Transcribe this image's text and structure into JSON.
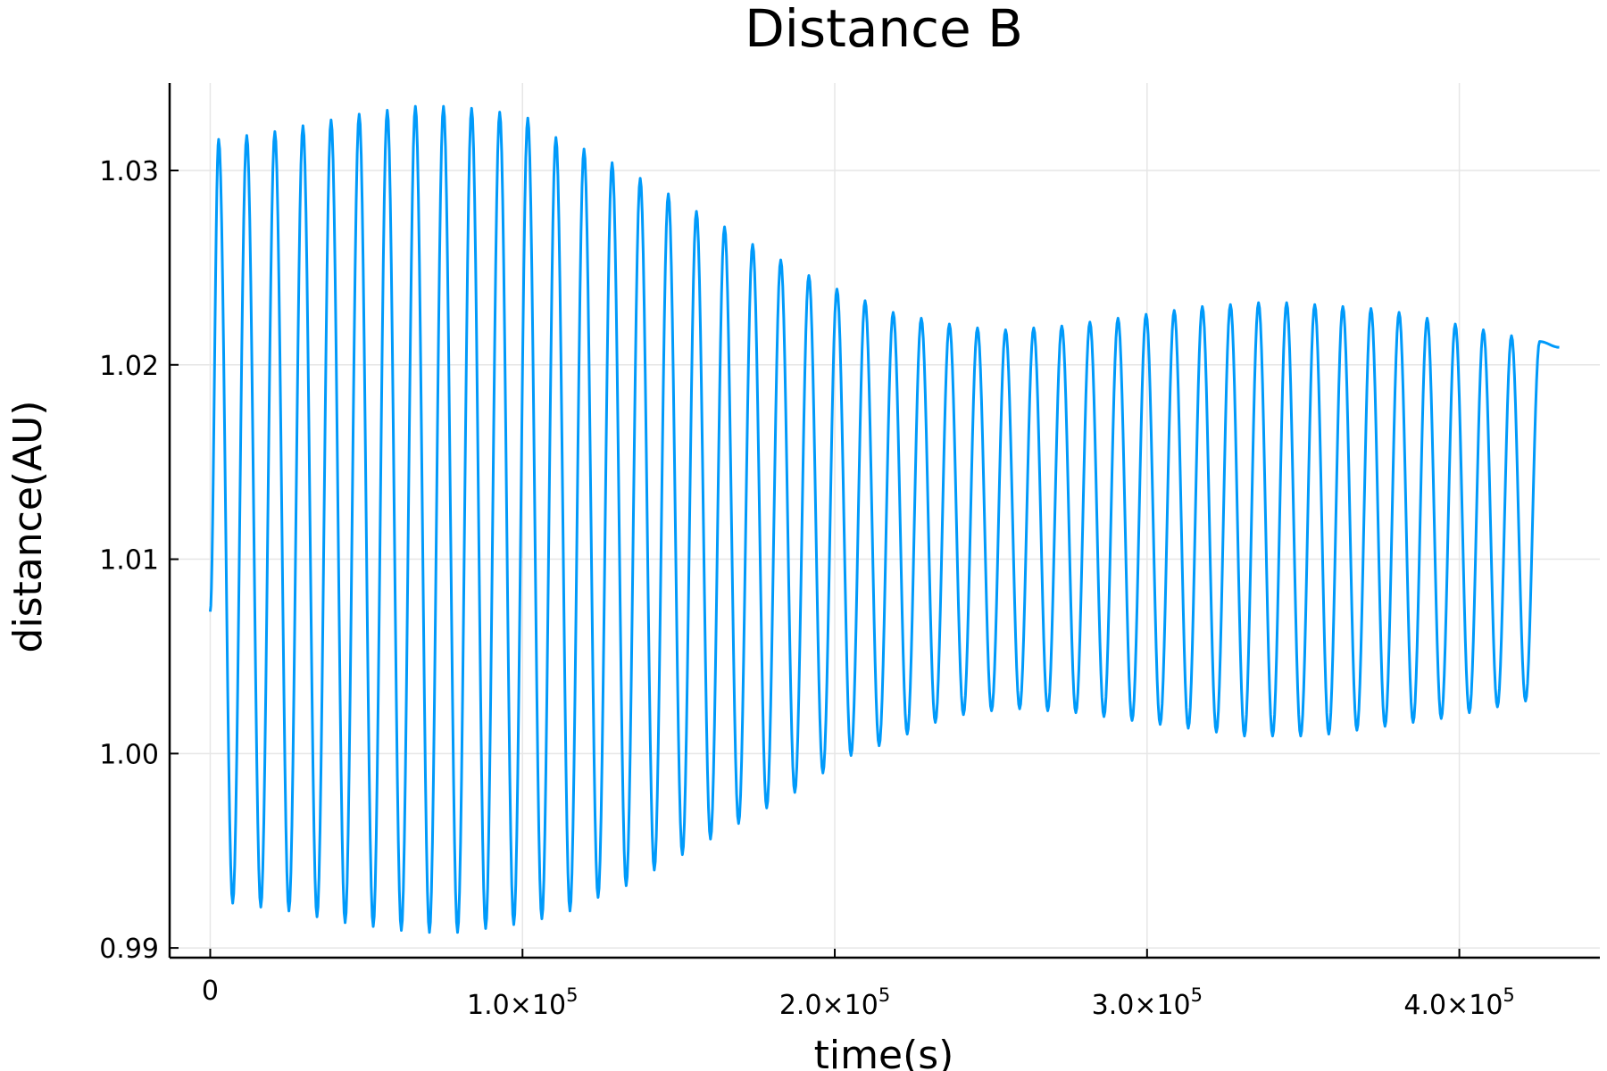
{
  "chart_data": {
    "type": "line",
    "title": "Distance B",
    "xlabel": "time(s)",
    "ylabel": "distance(AU)",
    "xlim": [
      -13000,
      445000
    ],
    "ylim": [
      0.9895,
      1.0345
    ],
    "grid": true,
    "legend": "none",
    "x_ticks": [
      {
        "value": 0,
        "mantissa": "0",
        "exp": ""
      },
      {
        "value": 100000,
        "mantissa": "1.0×10",
        "exp": "5"
      },
      {
        "value": 200000,
        "mantissa": "2.0×10",
        "exp": "5"
      },
      {
        "value": 300000,
        "mantissa": "3.0×10",
        "exp": "5"
      },
      {
        "value": 400000,
        "mantissa": "4.0×10",
        "exp": "5"
      }
    ],
    "y_ticks": [
      {
        "value": 0.99,
        "label": "0.99"
      },
      {
        "value": 1.0,
        "label": "1.00"
      },
      {
        "value": 1.01,
        "label": "1.01"
      },
      {
        "value": 1.02,
        "label": "1.02"
      },
      {
        "value": 1.03,
        "label": "1.03"
      }
    ],
    "series": [
      {
        "color": "#009AFA",
        "start": {
          "x": 0,
          "y": 1.0073
        },
        "end": {
          "x": 432000,
          "y": 1.0209
        },
        "maxima": [
          [
            2700,
            1.0316
          ],
          [
            11700,
            1.0318
          ],
          [
            20700,
            1.032
          ],
          [
            29700,
            1.0323
          ],
          [
            38700,
            1.0326
          ],
          [
            47700,
            1.0329
          ],
          [
            56700,
            1.0331
          ],
          [
            65700,
            1.0333
          ],
          [
            74700,
            1.0333
          ],
          [
            83700,
            1.0332
          ],
          [
            92700,
            1.033
          ],
          [
            101700,
            1.0327
          ],
          [
            110700,
            1.0317
          ],
          [
            119700,
            1.0311
          ],
          [
            128700,
            1.0304
          ],
          [
            137700,
            1.0296
          ],
          [
            146700,
            1.0288
          ],
          [
            155700,
            1.0279
          ],
          [
            164700,
            1.0271
          ],
          [
            173700,
            1.0262
          ],
          [
            182700,
            1.0254
          ],
          [
            191700,
            1.0246
          ],
          [
            200700,
            1.0239
          ],
          [
            209700,
            1.0233
          ],
          [
            218700,
            1.0227
          ],
          [
            227700,
            1.0224
          ],
          [
            236700,
            1.0221
          ],
          [
            245700,
            1.0219
          ],
          [
            254700,
            1.0218
          ],
          [
            263700,
            1.0219
          ],
          [
            272700,
            1.022
          ],
          [
            281700,
            1.0222
          ],
          [
            290700,
            1.0224
          ],
          [
            299700,
            1.0226
          ],
          [
            308700,
            1.0228
          ],
          [
            317700,
            1.023
          ],
          [
            326700,
            1.0231
          ],
          [
            335700,
            1.0232
          ],
          [
            344700,
            1.0232
          ],
          [
            353700,
            1.0231
          ],
          [
            362700,
            1.023
          ],
          [
            371700,
            1.0229
          ],
          [
            380700,
            1.0227
          ],
          [
            389700,
            1.0224
          ],
          [
            398700,
            1.0221
          ],
          [
            407700,
            1.0218
          ],
          [
            416700,
            1.0215
          ],
          [
            425700,
            1.0212
          ]
        ],
        "minima": [
          [
            7200,
            0.9923
          ],
          [
            16200,
            0.9921
          ],
          [
            25200,
            0.9919
          ],
          [
            34200,
            0.9916
          ],
          [
            43200,
            0.9913
          ],
          [
            52200,
            0.9911
          ],
          [
            61200,
            0.9909
          ],
          [
            70200,
            0.9908
          ],
          [
            79200,
            0.9908
          ],
          [
            88200,
            0.991
          ],
          [
            97200,
            0.9912
          ],
          [
            106200,
            0.9915
          ],
          [
            115200,
            0.9919
          ],
          [
            124200,
            0.9926
          ],
          [
            133200,
            0.9932
          ],
          [
            142200,
            0.994
          ],
          [
            151200,
            0.9948
          ],
          [
            160200,
            0.9956
          ],
          [
            169200,
            0.9964
          ],
          [
            178200,
            0.9972
          ],
          [
            187200,
            0.998
          ],
          [
            196200,
            0.999
          ],
          [
            205200,
            0.9999
          ],
          [
            214200,
            1.0004
          ],
          [
            223200,
            1.001
          ],
          [
            232200,
            1.0016
          ],
          [
            241200,
            1.002
          ],
          [
            250200,
            1.0022
          ],
          [
            259200,
            1.0023
          ],
          [
            268200,
            1.0022
          ],
          [
            277200,
            1.0021
          ],
          [
            286200,
            1.0019
          ],
          [
            295200,
            1.0017
          ],
          [
            304200,
            1.0015
          ],
          [
            313200,
            1.0013
          ],
          [
            322200,
            1.0011
          ],
          [
            331200,
            1.0009
          ],
          [
            340200,
            1.0009
          ],
          [
            349200,
            1.0009
          ],
          [
            358200,
            1.001
          ],
          [
            367200,
            1.0012
          ],
          [
            376200,
            1.0014
          ],
          [
            385200,
            1.0016
          ],
          [
            394200,
            1.0018
          ],
          [
            403200,
            1.0021
          ],
          [
            412200,
            1.0024
          ],
          [
            421200,
            1.0027
          ]
        ]
      }
    ]
  }
}
